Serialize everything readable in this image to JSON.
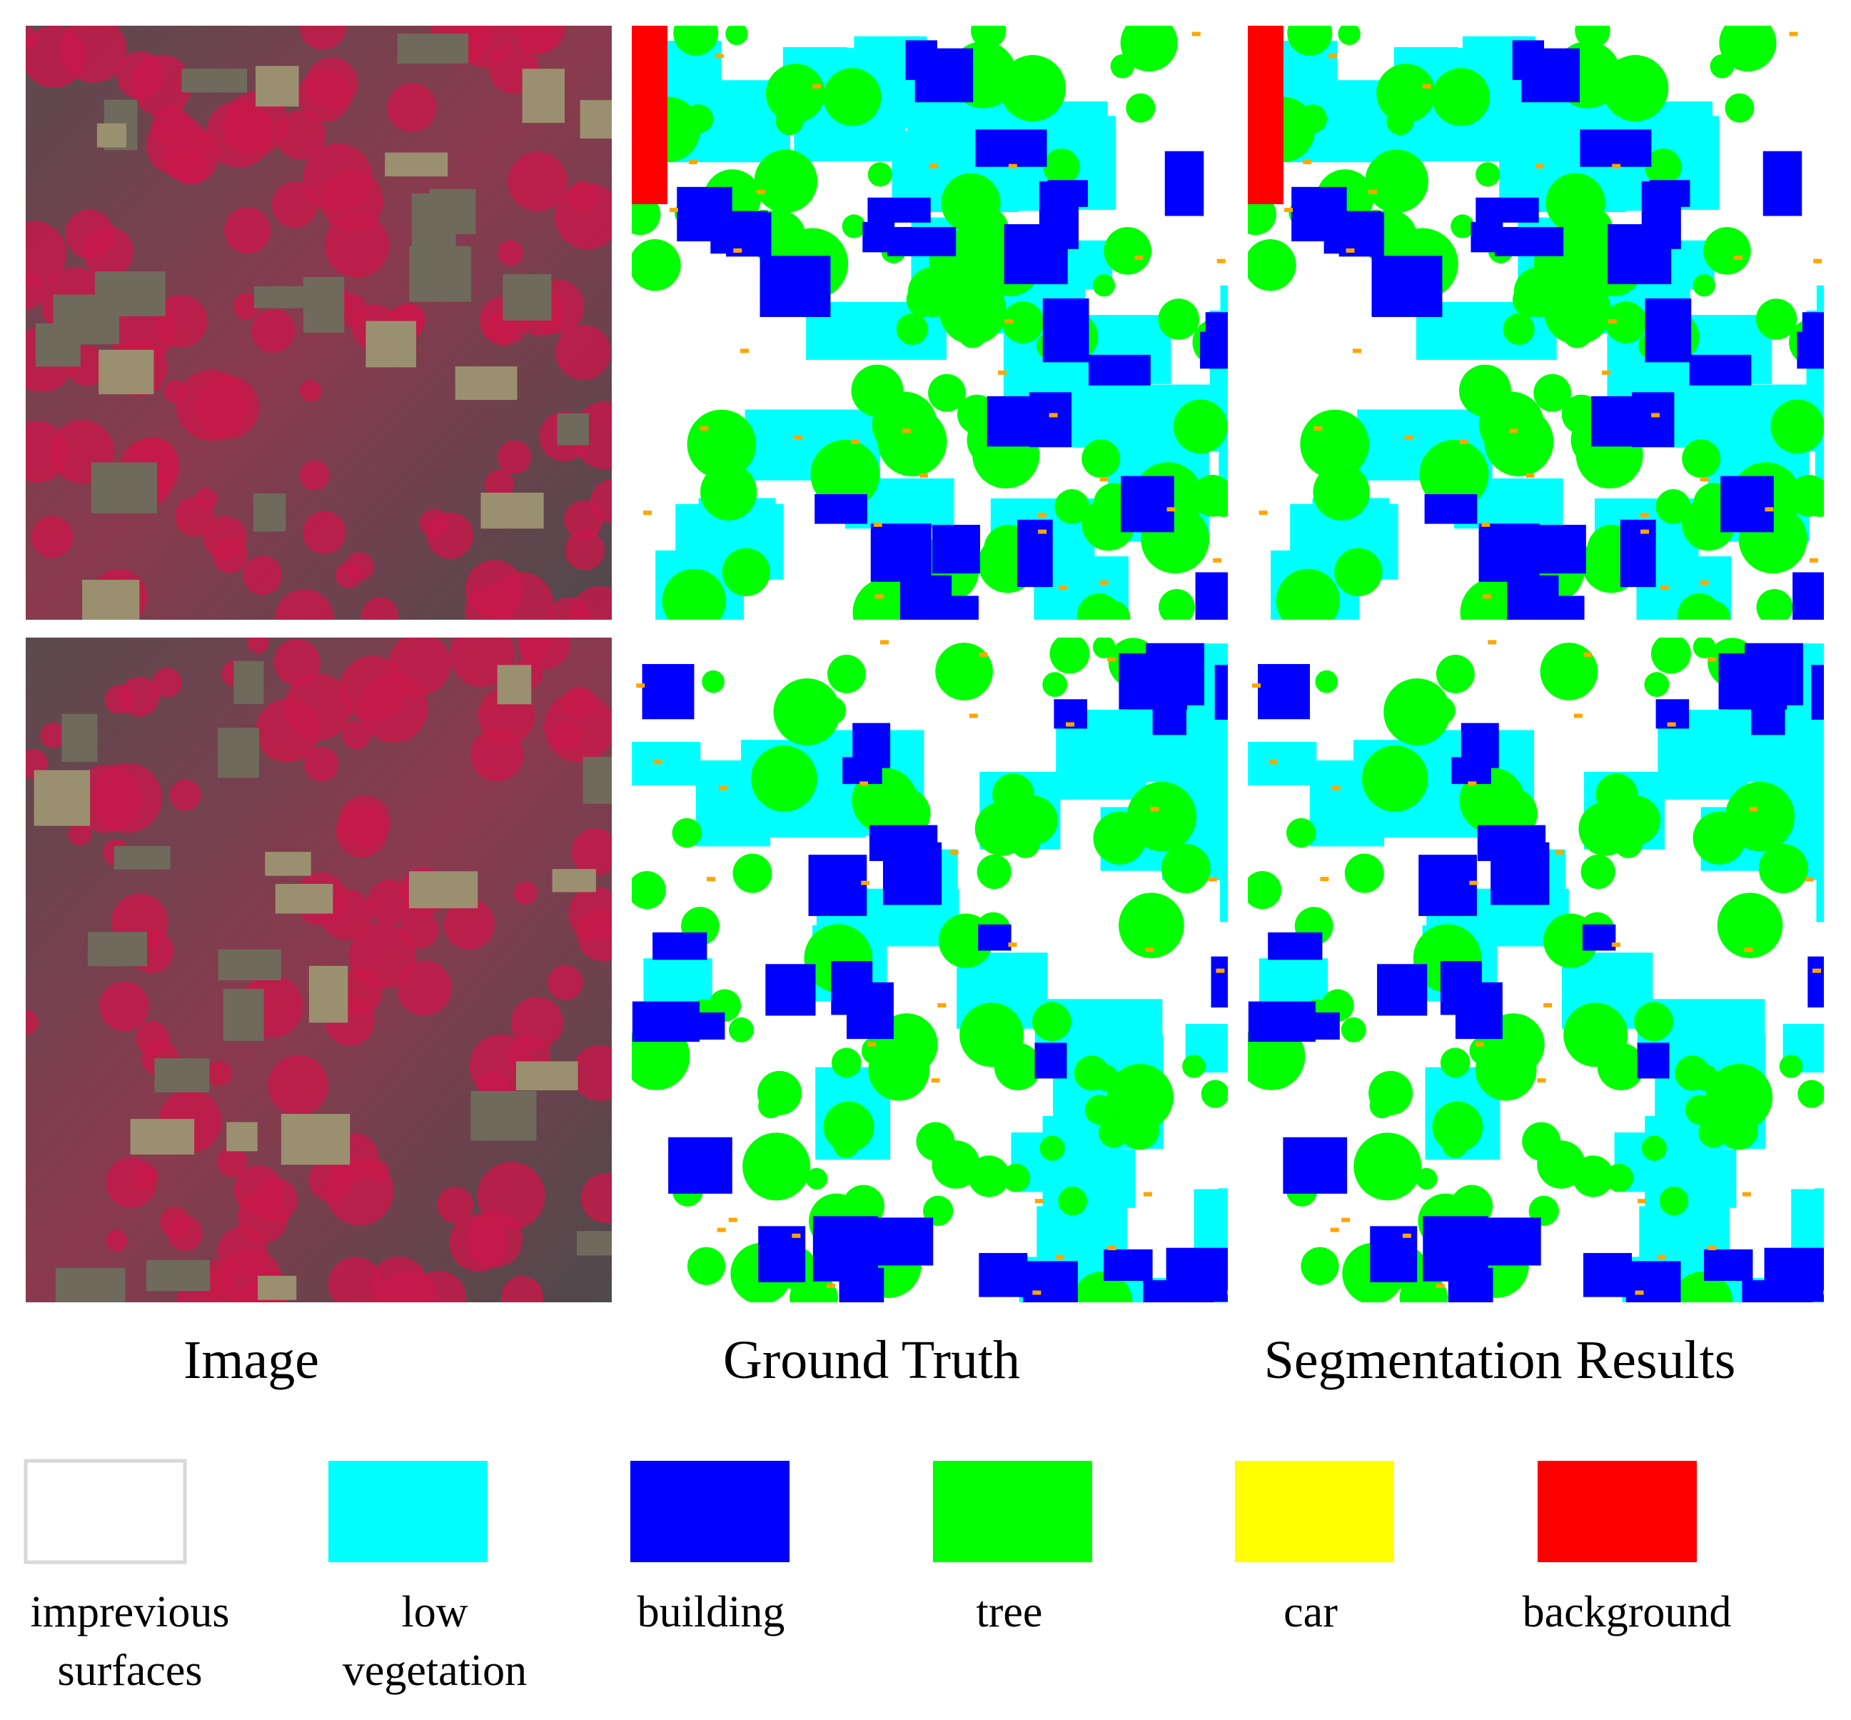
{
  "columns": [
    "Image",
    "Ground Truth",
    "Segmentation Results"
  ],
  "legend": [
    {
      "label": [
        "imprevious",
        "surfaces"
      ],
      "color": "#ffffff"
    },
    {
      "label": [
        "low",
        "vegetation"
      ],
      "color": "#00ffff"
    },
    {
      "label": [
        "building"
      ],
      "color": "#0000ff"
    },
    {
      "label": [
        "tree"
      ],
      "color": "#00ff00"
    },
    {
      "label": [
        "car"
      ],
      "color": "#ffff00"
    },
    {
      "label": [
        "background"
      ],
      "color": "#ff0000"
    }
  ]
}
